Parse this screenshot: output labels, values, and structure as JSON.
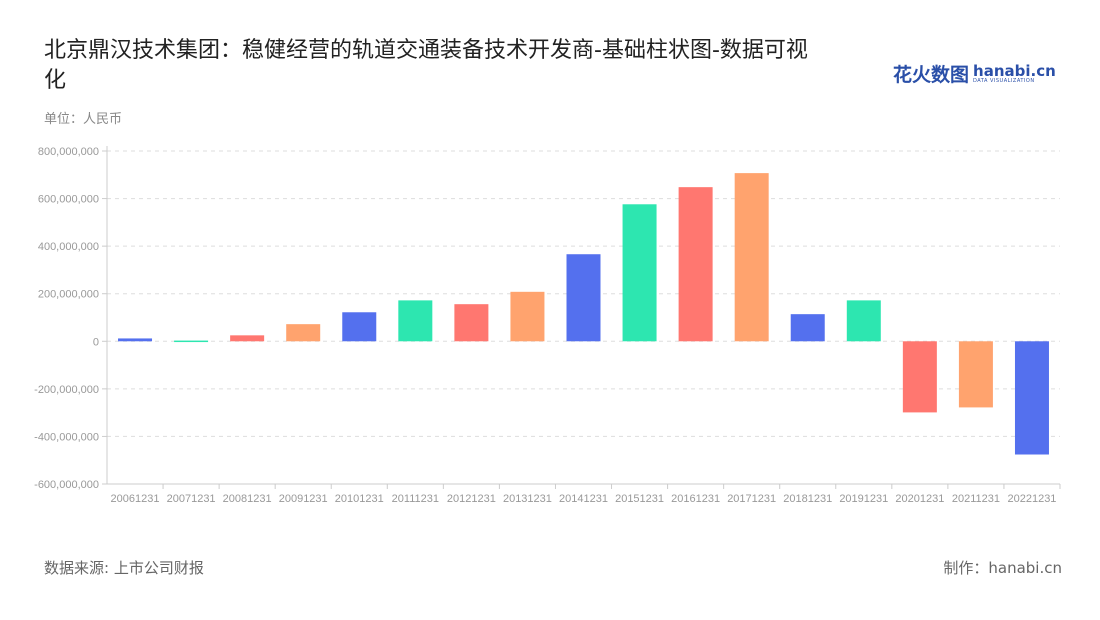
{
  "title": "北京鼎汉技术集团：稳健经营的轨道交通装备技术开发商-基础柱状图-数据可视化",
  "unit": "单位：人民币",
  "logo": {
    "cn": "花火数图",
    "en": "hanabi.cn",
    "tagline": "DATA VISUALIZATION"
  },
  "footer": {
    "source": "数据来源: 上市公司财报",
    "credit": "制作：hanabi.cn"
  },
  "chart_data": {
    "type": "bar",
    "categories": [
      "20061231",
      "20071231",
      "20081231",
      "20091231",
      "20101231",
      "20111231",
      "20121231",
      "20131231",
      "20141231",
      "20151231",
      "20161231",
      "20171231",
      "20181231",
      "20191231",
      "20201231",
      "20211231",
      "20221231"
    ],
    "values": [
      12000000,
      3000000,
      25000000,
      72000000,
      122000000,
      172000000,
      156000000,
      208000000,
      366000000,
      576000000,
      648000000,
      707000000,
      114000000,
      172000000,
      -299000000,
      -278000000,
      -476000000
    ],
    "ylim": [
      -600000000,
      800000000
    ],
    "yticks": [
      800000000,
      600000000,
      400000000,
      200000000,
      0,
      -200000000,
      -400000000,
      -600000000
    ],
    "ytick_labels": [
      "800,000,000",
      "600,000,000",
      "400,000,000",
      "200,000,000",
      "0",
      "-200,000,000",
      "-400,000,000",
      "-600,000,000"
    ],
    "colors": [
      "#5470ee",
      "#2de6b0",
      "#ff7770",
      "#ffa36e"
    ],
    "grid": true,
    "legend": "none"
  }
}
